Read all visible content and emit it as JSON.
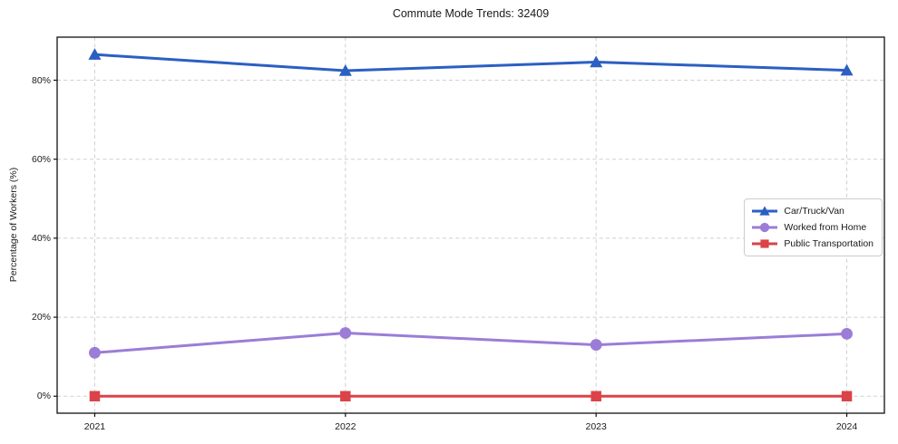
{
  "title": "Commute Mode Trends: 32409",
  "chart_data": {
    "type": "line",
    "title": "Commute Mode Trends: 32409",
    "xlabel": "",
    "ylabel": "Percentage of Workers (%)",
    "x": [
      2021,
      2022,
      2023,
      2024
    ],
    "x_tick_labels": [
      "2021",
      "2022",
      "2023",
      "2024"
    ],
    "yticks": [
      {
        "value": 0,
        "label": "0%"
      },
      {
        "value": 20,
        "label": "20%"
      },
      {
        "value": 40,
        "label": "40%"
      },
      {
        "value": 60,
        "label": "60%"
      },
      {
        "value": 80,
        "label": "80%"
      }
    ],
    "series": [
      {
        "name": "Car/Truck/Van",
        "marker": "triangle",
        "color": "#2b5fc3",
        "values": [
          86.5,
          82.4,
          84.6,
          82.5
        ]
      },
      {
        "name": "Worked from Home",
        "marker": "circle",
        "color": "#9b7dd7",
        "values": [
          11.0,
          16.0,
          13.0,
          15.8
        ]
      },
      {
        "name": "Public Transportation",
        "marker": "square",
        "color": "#db4348",
        "values": [
          0.0,
          0.0,
          0.0,
          0.0
        ]
      }
    ],
    "xlim": [
      2020.85,
      2024.15
    ],
    "ylim": [
      -4.3,
      90.9
    ],
    "grid": true,
    "legend_position": "center right",
    "colors": {
      "grid": "#cfcfcf",
      "spine": "#111111",
      "text": "#1a1a1a",
      "background": "#ffffff"
    }
  }
}
